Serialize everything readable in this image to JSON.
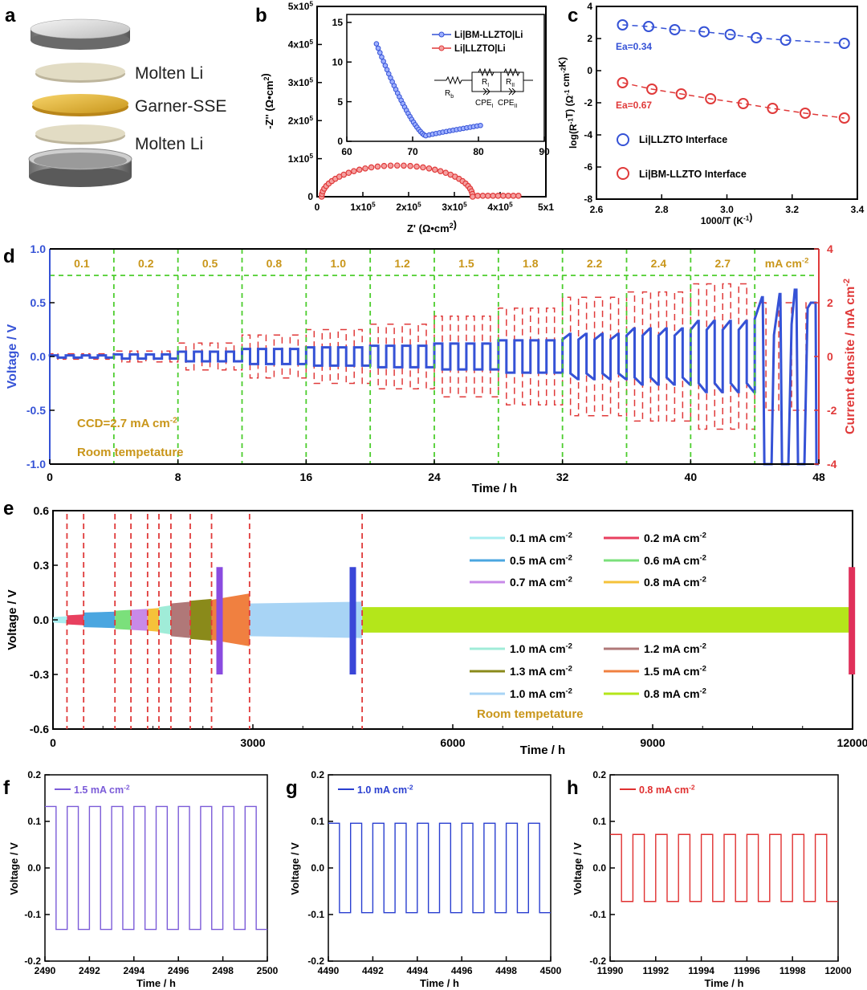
{
  "panels": {
    "a": "a",
    "b": "b",
    "c": "c",
    "d": "d",
    "e": "e",
    "f": "f",
    "g": "g",
    "h": "h"
  },
  "stack_layers": [
    "Molten Li",
    "Garner-SSE",
    "Molten Li"
  ],
  "colors": {
    "blue": "#3552d6",
    "red": "#e03a3a",
    "green": "#4ccd2d",
    "gold": "#c9961a",
    "purple": "#8a5be0",
    "f_line": "#7b5bd8",
    "g_line": "#2a3fd0",
    "h_line": "#e03030"
  },
  "chart_data": [
    {
      "id": "b",
      "type": "scatter",
      "xlabel": "Z' (Ω•cm²)",
      "ylabel": "-Z'' (Ω•cm²)",
      "x_ticks": [
        "0",
        "1x10⁵",
        "2x10⁵",
        "3x10⁵",
        "4x10⁵",
        "5x1"
      ],
      "y_ticks": [
        "0",
        "1x10⁵",
        "2x10⁵",
        "3x10⁵",
        "4x10⁵",
        "5x10⁵"
      ],
      "xlim": [
        0,
        500000
      ],
      "ylim": [
        0,
        500000
      ],
      "series": [
        {
          "name": "Li|LLZTO|Li",
          "arc_center": 175000,
          "arc_radius": 165000,
          "arc_height": 82000,
          "x_end": 440000
        }
      ],
      "inset": {
        "x_ticks": [
          "60",
          "70",
          "80",
          "90"
        ],
        "y_ticks": [
          "0",
          "5",
          "10",
          "15"
        ],
        "xlim": [
          60,
          90
        ],
        "ylim": [
          0,
          16
        ],
        "series": [
          {
            "name": "Li|BM-LLZTO|Li",
            "x_start": 64.5,
            "y_start": 12.3,
            "x_min": 72.0,
            "y_min": 0.7,
            "x_end": 80.3,
            "y_end": 2.0
          }
        ],
        "legend": [
          "Li|BM-LLZTO|Li",
          "Li|LLZTO|Li"
        ],
        "circuit": {
          "Rb": "R",
          "Rb_sub": "b",
          "R1": "R",
          "R1_sub": "I",
          "R2": "R",
          "R2_sub": "II",
          "C1": "CPE",
          "C1_sub": "I",
          "C2": "CPE",
          "C2_sub": "II"
        }
      }
    },
    {
      "id": "c",
      "type": "scatter",
      "xlabel": "1000/T (K⁻¹)",
      "ylabel": "log(R⁻¹T) (Ω⁻¹ cm⁻²K)",
      "x_ticks": [
        "2.6",
        "2.8",
        "3.0",
        "3.2",
        "3.4"
      ],
      "y_ticks": [
        "-8",
        "-6",
        "-4",
        "-2",
        "0",
        "2",
        "4"
      ],
      "xlim": [
        2.6,
        3.4
      ],
      "ylim": [
        -8,
        4
      ],
      "series": [
        {
          "name": "Li|LLZTO Interface",
          "color": "#3552d6",
          "x": [
            2.68,
            2.76,
            2.84,
            2.93,
            3.01,
            3.09,
            3.18,
            3.36
          ],
          "y": [
            2.85,
            2.75,
            2.55,
            2.42,
            2.25,
            2.05,
            1.9,
            1.7
          ],
          "ea": "Ea=0.34"
        },
        {
          "name": "Li|BM-LLZTO Interface",
          "color": "#e03a3a",
          "x": [
            2.68,
            2.77,
            2.86,
            2.95,
            3.05,
            3.14,
            3.24,
            3.36
          ],
          "y": [
            -0.75,
            -1.15,
            -1.45,
            -1.75,
            -2.05,
            -2.35,
            -2.65,
            -2.95
          ],
          "ea": "Ea=0.67"
        }
      ],
      "legend": [
        "Li|LLZTO Interface",
        "Li|BM-LLZTO Interface"
      ]
    },
    {
      "id": "d",
      "type": "line",
      "xlabel": "Time / h",
      "ylabel": "Voltage / V",
      "ylabel2": "Current densite / mA cm⁻²",
      "x_ticks": [
        "0",
        "8",
        "16",
        "24",
        "32",
        "40",
        "48"
      ],
      "y_ticks": [
        "-1.0",
        "-0.5",
        "0.0",
        "0.5",
        "1.0"
      ],
      "y2_ticks": [
        "-4",
        "-2",
        "0",
        "2",
        "4"
      ],
      "xlim": [
        0,
        48
      ],
      "ylim": [
        -1.0,
        1.0
      ],
      "y2lim": [
        -4,
        4
      ],
      "current_steps": [
        "0.1",
        "0.2",
        "0.5",
        "0.8",
        "1.0",
        "1.2",
        "1.5",
        "1.8",
        "2.2",
        "2.4",
        "2.7"
      ],
      "current_values": [
        0.1,
        0.2,
        0.5,
        0.8,
        1.0,
        1.2,
        1.5,
        1.8,
        2.2,
        2.4,
        2.7
      ],
      "voltage_amplitudes": [
        0.01,
        0.02,
        0.045,
        0.07,
        0.085,
        0.1,
        0.12,
        0.15,
        0.21,
        0.26,
        0.33
      ],
      "unit_label": "mA cm⁻²",
      "annotations": [
        "CCD=2.7 mA cm⁻²",
        "Room tempetature"
      ]
    },
    {
      "id": "e",
      "type": "area",
      "xlabel": "Time / h",
      "ylabel": "Voltage / V",
      "x_ticks": [
        "0",
        "3000",
        "6000",
        "9000",
        "12000"
      ],
      "y_ticks": [
        "-0.6",
        "-0.3",
        "0.0",
        "0.3",
        "0.6"
      ],
      "xlim": [
        0,
        12000
      ],
      "ylim": [
        -0.6,
        0.6
      ],
      "segments": [
        {
          "label": "0.1 mA cm⁻²",
          "color": "#a8eef0",
          "x0": 0,
          "x1": 210,
          "v0": 0.015,
          "v1": 0.02
        },
        {
          "label": "0.2 mA cm⁻²",
          "color": "#e8405f",
          "x0": 210,
          "x1": 460,
          "v0": 0.025,
          "v1": 0.03
        },
        {
          "label": "0.5 mA cm⁻²",
          "color": "#4aa6e0",
          "x0": 460,
          "x1": 930,
          "v0": 0.04,
          "v1": 0.045
        },
        {
          "label": "0.6 mA cm⁻²",
          "color": "#7be07b",
          "x0": 930,
          "x1": 1170,
          "v0": 0.05,
          "v1": 0.055
        },
        {
          "label": "0.7 mA cm⁻²",
          "color": "#c88ae8",
          "x0": 1170,
          "x1": 1420,
          "v0": 0.055,
          "v1": 0.06
        },
        {
          "label": "0.8 mA cm⁻²",
          "color": "#f5c23a",
          "x0": 1420,
          "x1": 1590,
          "v0": 0.06,
          "v1": 0.065
        },
        {
          "label": "1.0 mA cm⁻²",
          "color": "#a0ecd8",
          "x0": 1590,
          "x1": 1770,
          "v0": 0.07,
          "v1": 0.08
        },
        {
          "label": "1.2 mA cm⁻²",
          "color": "#b07878",
          "x0": 1770,
          "x1": 2060,
          "v0": 0.09,
          "v1": 0.1
        },
        {
          "label": "1.3 mA cm⁻²",
          "color": "#8a8a1a",
          "x0": 2060,
          "x1": 2380,
          "v0": 0.105,
          "v1": 0.115
        },
        {
          "label": "1.5 mA cm⁻²",
          "color": "#f08040",
          "x0": 2380,
          "x1": 2950,
          "v0": 0.11,
          "v1": 0.145
        },
        {
          "label": "1.0 mA cm⁻²",
          "color": "#a8d4f5",
          "x0": 2950,
          "x1": 4640,
          "v0": 0.09,
          "v1": 0.1
        },
        {
          "label": "0.8 mA cm⁻²",
          "color": "#b4e61a",
          "x0": 4640,
          "x1": 12000,
          "v0": 0.07,
          "v1": 0.07
        }
      ],
      "dividers": [
        210,
        460,
        930,
        1170,
        1420,
        1590,
        1770,
        2060,
        2380,
        2950,
        4640
      ],
      "markers": [
        {
          "x": 2500,
          "color": "#8a4be0"
        },
        {
          "x": 4500,
          "color": "#3a46d8"
        },
        {
          "x": 11990,
          "color": "#e0305a"
        }
      ],
      "annotation": "Room tempetature"
    },
    {
      "id": "f",
      "type": "line",
      "legend": "1.5 mA cm⁻²",
      "xlabel": "Time / h",
      "ylabel": "Voltage / V",
      "x_ticks": [
        "2490",
        "2492",
        "2494",
        "2496",
        "2498",
        "2500"
      ],
      "y_ticks": [
        "-0.2",
        "-0.1",
        "0.0",
        "0.1",
        "0.2"
      ],
      "xlim": [
        2490,
        2500
      ],
      "ylim": [
        -0.2,
        0.2
      ],
      "amplitude": 0.132
    },
    {
      "id": "g",
      "type": "line",
      "legend": "1.0 mA cm⁻²",
      "xlabel": "Time / h",
      "ylabel": "Voltage / V",
      "x_ticks": [
        "4490",
        "4492",
        "4494",
        "4496",
        "4498",
        "4500"
      ],
      "y_ticks": [
        "-0.2",
        "-0.1",
        "0.0",
        "0.1",
        "0.2"
      ],
      "xlim": [
        4490,
        4500
      ],
      "ylim": [
        -0.2,
        0.2
      ],
      "amplitude": 0.096
    },
    {
      "id": "h",
      "type": "line",
      "legend": "0.8 mA cm⁻²",
      "xlabel": "Time / h",
      "ylabel": "Voltage / V",
      "x_ticks": [
        "11990",
        "11992",
        "11994",
        "11996",
        "11998",
        "12000"
      ],
      "y_ticks": [
        "-0.2",
        "-0.1",
        "0.0",
        "0.1",
        "0.2"
      ],
      "xlim": [
        11990,
        12000
      ],
      "ylim": [
        -0.2,
        0.2
      ],
      "amplitude": 0.072
    }
  ]
}
